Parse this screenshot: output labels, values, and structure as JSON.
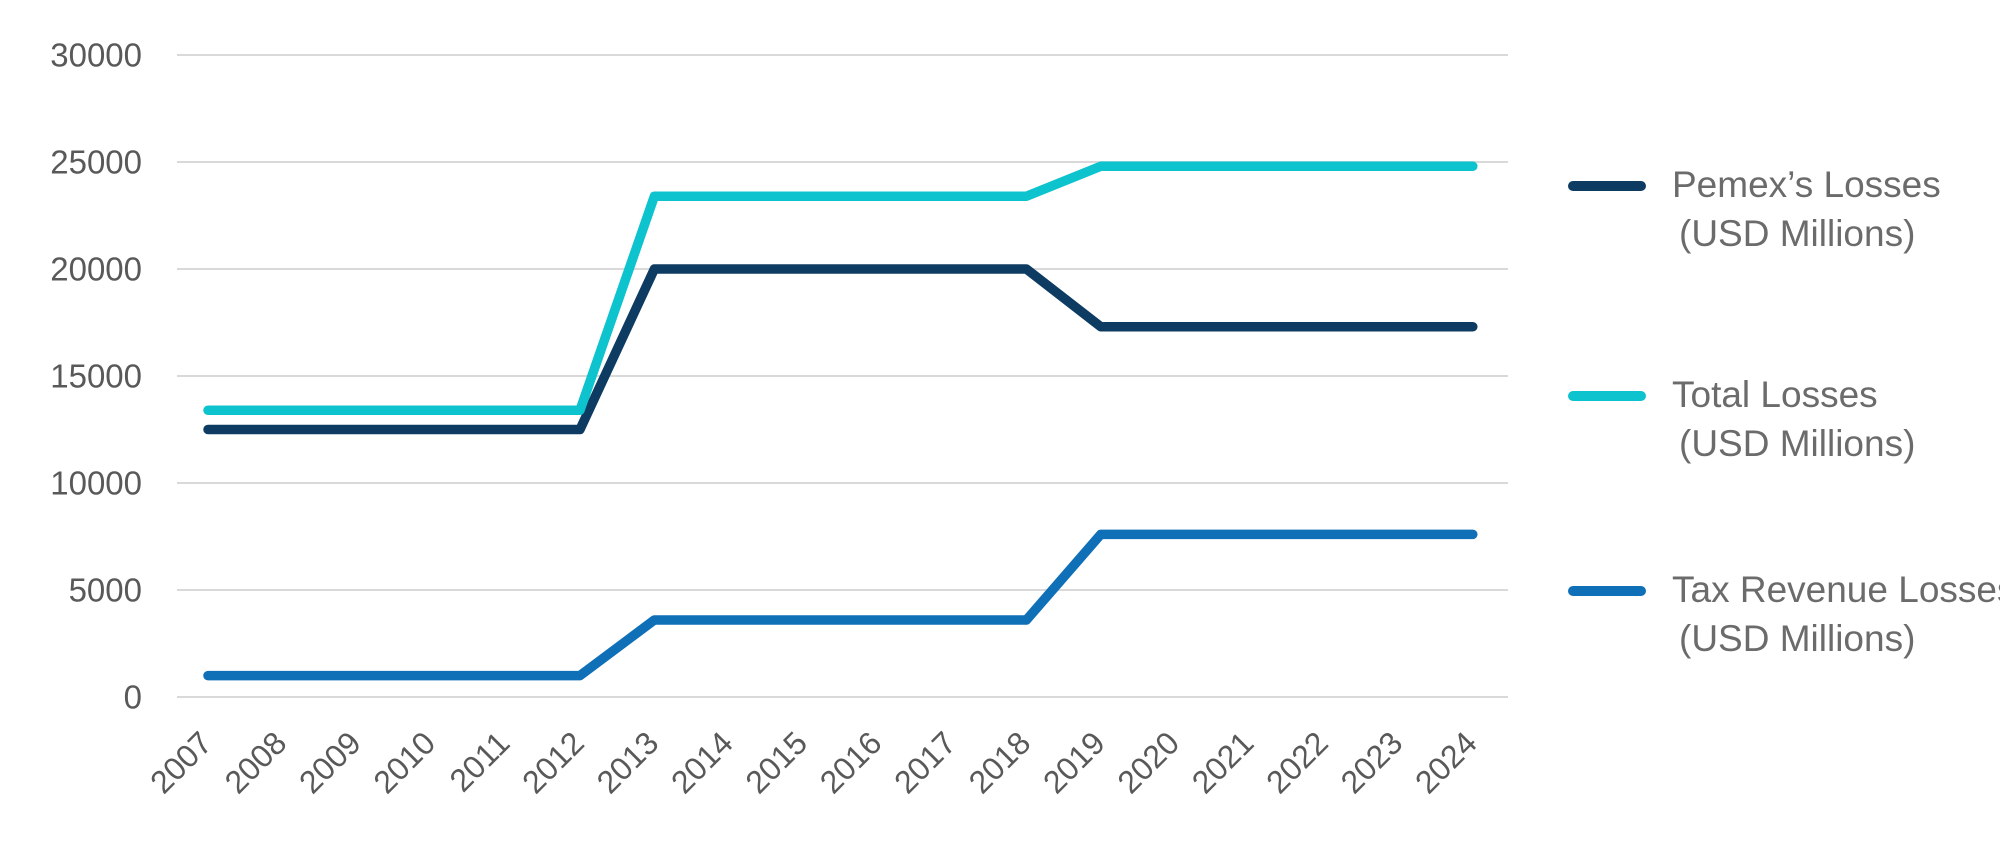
{
  "chart_data": {
    "type": "line",
    "x": [
      2007,
      2008,
      2009,
      2010,
      2011,
      2012,
      2013,
      2014,
      2015,
      2016,
      2017,
      2018,
      2019,
      2020,
      2021,
      2022,
      2023,
      2024
    ],
    "series": [
      {
        "key": "pemex-losses",
        "name": "Pemex’s Losses (USD Millions)",
        "color": "#0e3b61",
        "values": [
          12500,
          12500,
          12500,
          12500,
          12500,
          12500,
          20000,
          20000,
          20000,
          20000,
          20000,
          20000,
          17300,
          17300,
          17300,
          17300,
          17300,
          17300
        ]
      },
      {
        "key": "total-losses",
        "name": "Total Losses (USD Millions)",
        "color": "#0cc3ce",
        "values": [
          13400,
          13400,
          13400,
          13400,
          13400,
          13400,
          23400,
          23400,
          23400,
          23400,
          23400,
          23400,
          24800,
          24800,
          24800,
          24800,
          24800,
          24800
        ]
      },
      {
        "key": "tax-revenue-losses",
        "name": "Tax Revenue Losses (USD Millions)",
        "color": "#0f6fb7",
        "values": [
          1000,
          1000,
          1000,
          1000,
          1000,
          1000,
          3600,
          3600,
          3600,
          3600,
          3600,
          3600,
          7600,
          7600,
          7600,
          7600,
          7600,
          7600
        ]
      }
    ],
    "title": "",
    "xlabel": "",
    "ylabel": "",
    "ylim": [
      0,
      30000
    ],
    "yticks": [
      0,
      5000,
      10000,
      15000,
      20000,
      25000,
      30000
    ],
    "grid": true,
    "legend_position": "right",
    "grid_color": "#d9d9d9",
    "axis_text_color": "#595959"
  },
  "legend": {
    "text_color": "#6b6b6b",
    "items": [
      {
        "line1": "Pemex’s Losses",
        "line2": "(USD Millions)",
        "color": "#0e3b61"
      },
      {
        "line1": "Total Losses",
        "line2": "(USD Millions)",
        "color": "#0cc3ce"
      },
      {
        "line1": "Tax Revenue Losses",
        "line2": "(USD Millions)",
        "color": "#0f6fb7"
      }
    ]
  }
}
